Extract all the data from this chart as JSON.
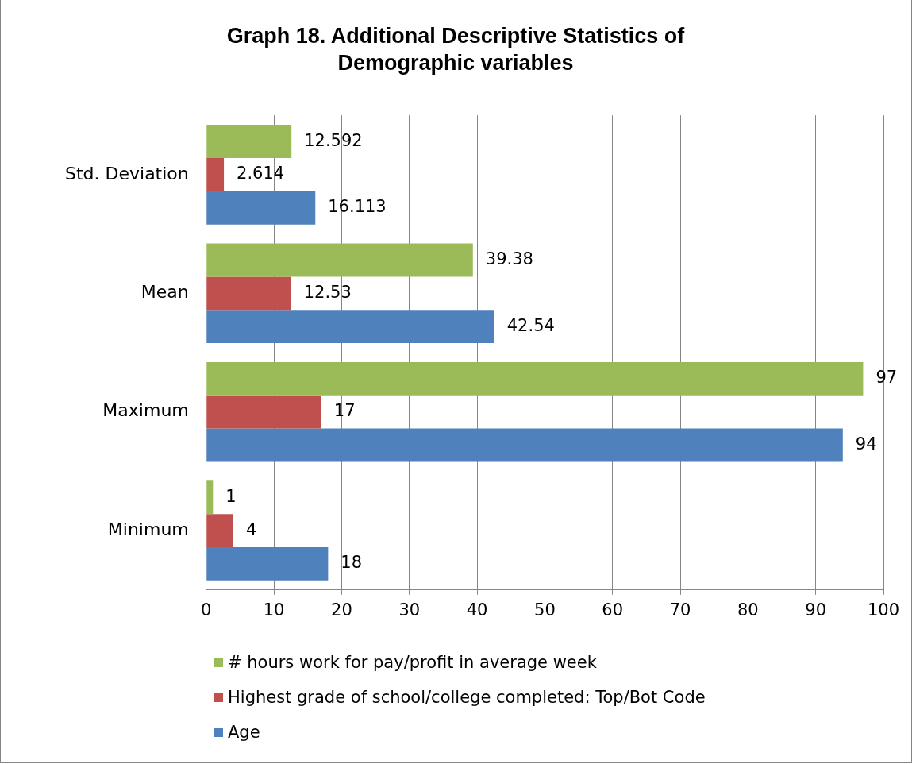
{
  "chart_data": {
    "type": "bar",
    "orientation": "horizontal",
    "title": "Graph 18.  Additional Descriptive Statistics of Demographic variables",
    "categories": [
      "Std. Deviation",
      "Mean",
      "Maximum",
      "Minimum"
    ],
    "series": [
      {
        "name": "# hours work for pay/profit in average week",
        "color": "#9bbb59",
        "values": [
          12.592,
          39.38,
          97,
          1
        ]
      },
      {
        "name": "Highest grade of school/college completed: Top/Bot Code",
        "color": "#c0504d",
        "values": [
          2.614,
          12.53,
          17,
          4
        ]
      },
      {
        "name": "Age",
        "color": "#4f81bd",
        "values": [
          16.113,
          42.54,
          94,
          18
        ]
      }
    ],
    "xlim": [
      0,
      100
    ],
    "xticks": [
      0,
      10,
      20,
      30,
      40,
      50,
      60,
      70,
      80,
      90,
      100
    ],
    "grid": "x",
    "legend": "bottom",
    "data_labels": true
  }
}
